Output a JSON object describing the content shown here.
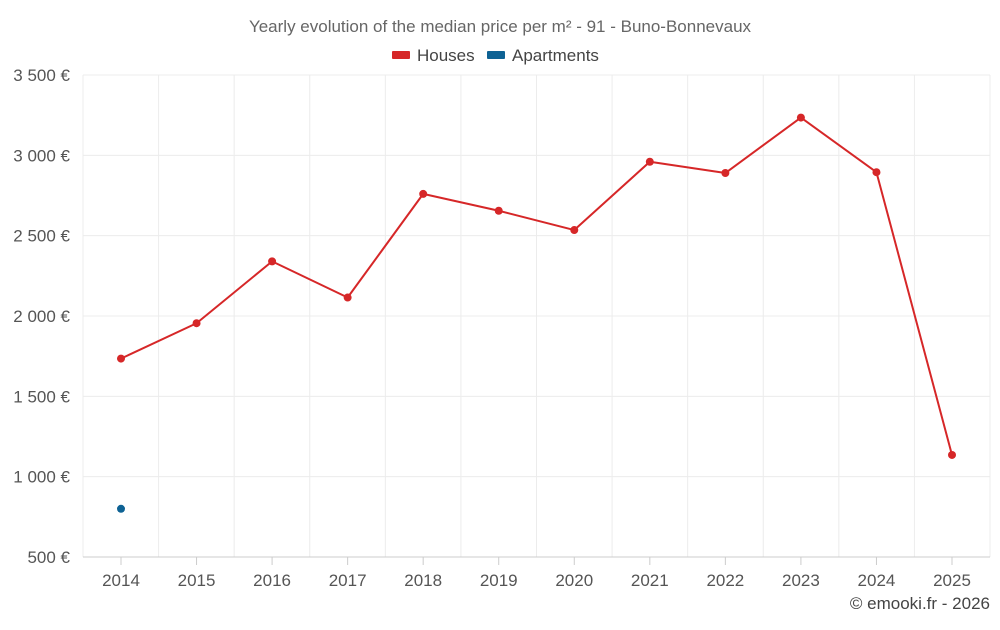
{
  "chart_data": {
    "type": "line",
    "title": "Yearly evolution of the median price per m² - 91 - Buno-Bonnevaux",
    "xlabel": "",
    "ylabel": "",
    "categories": [
      "2014",
      "2015",
      "2016",
      "2017",
      "2018",
      "2019",
      "2020",
      "2021",
      "2022",
      "2023",
      "2024",
      "2025"
    ],
    "yticks": [
      500,
      1000,
      1500,
      2000,
      2500,
      3000,
      3500
    ],
    "ytick_labels": [
      "500 €",
      "1 000 €",
      "1 500 €",
      "2 000 €",
      "2 500 €",
      "3 000 €",
      "3 500 €"
    ],
    "ylim": [
      500,
      3500
    ],
    "grid": true,
    "legend_position": "top-center",
    "series": [
      {
        "name": "Houses",
        "color": "#d62728",
        "values": [
          1735,
          1955,
          2340,
          2115,
          2760,
          2655,
          2535,
          2960,
          2890,
          3235,
          2895,
          1135
        ]
      },
      {
        "name": "Apartments",
        "color": "#0e6294",
        "values": [
          800,
          null,
          null,
          null,
          null,
          null,
          null,
          null,
          null,
          null,
          null,
          null
        ]
      }
    ],
    "credit": "© emooki.fr - 2026"
  }
}
